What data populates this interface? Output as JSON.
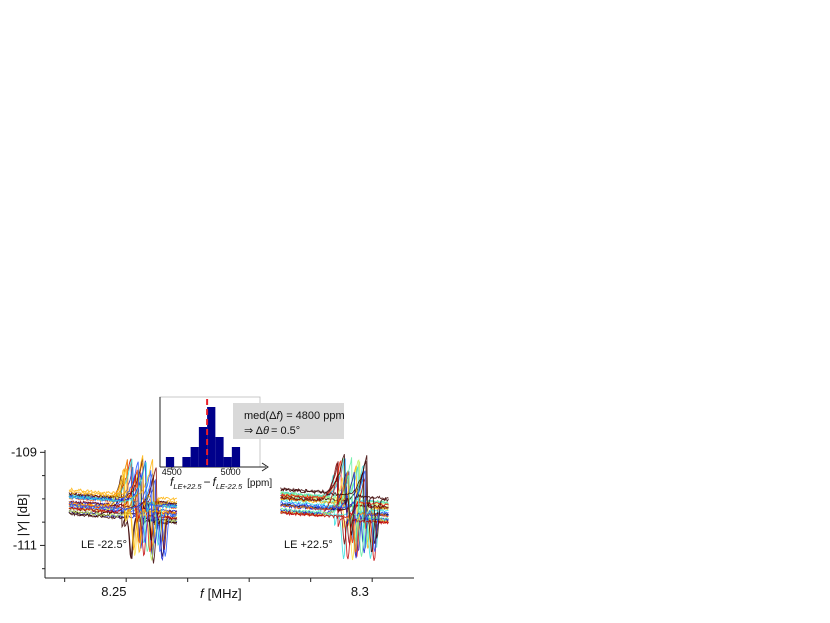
{
  "chart_data": [
    {
      "type": "line",
      "description_role": "main",
      "title": "",
      "xlabel": "f [MHz]",
      "xlabel_italic_part": "f",
      "xlabel_unit": "[MHz]",
      "ylabel": "|Y| [dB]",
      "ylabel_italic_part": "Y",
      "ylabel_unit": "[dB]",
      "xlim": [
        8.236,
        8.311
      ],
      "ylim": [
        -111.7,
        -108.95
      ],
      "x_ticks": [
        8.25,
        8.3
      ],
      "x_tick_labels": [
        "8.25",
        "8.3"
      ],
      "y_ticks": [
        -109,
        -111
      ],
      "y_tick_labels": [
        "-109",
        "-111"
      ],
      "grid": false,
      "groups": [
        {
          "label": "LE -22.5°",
          "resonance_range_MHz": [
            8.246,
            8.262
          ]
        },
        {
          "label": "LE +22.5°",
          "resonance_range_MHz": [
            8.289,
            8.305
          ]
        }
      ],
      "series_colormap": [
        "#3a0000",
        "#7a0000",
        "#c00000",
        "#ff2000",
        "#ff6a00",
        "#ffb000",
        "#ffe040",
        "#bff060",
        "#60f0a0",
        "#30e0e0",
        "#30a0ff",
        "#2050ff",
        "#1020d0"
      ]
    },
    {
      "type": "bar",
      "description_role": "inset histogram",
      "xlabel": "f_{LE+22.5} − f_{LE-22.5} [ppm]",
      "xlabel_parts": {
        "f1": "f",
        "sub1": "LE+22.5",
        "minus": "−",
        "f2": "f",
        "sub2": "LE-22.5",
        "unit": "[ppm]"
      },
      "x_tick_labels": [
        "4500",
        "5000"
      ],
      "x_ticks": [
        4500,
        5000
      ],
      "xlim": [
        4400,
        5300
      ],
      "bins": [
        {
          "x0": 4450,
          "x1": 4520,
          "count": 1
        },
        {
          "x0": 4520,
          "x1": 4590,
          "count": 0
        },
        {
          "x0": 4590,
          "x1": 4660,
          "count": 1
        },
        {
          "x0": 4660,
          "x1": 4730,
          "count": 2
        },
        {
          "x0": 4730,
          "x1": 4800,
          "count": 4
        },
        {
          "x0": 4800,
          "x1": 4870,
          "count": 6
        },
        {
          "x0": 4870,
          "x1": 4940,
          "count": 3
        },
        {
          "x0": 4940,
          "x1": 5010,
          "count": 1
        },
        {
          "x0": 5010,
          "x1": 5080,
          "count": 2
        }
      ],
      "bar_color": "#00008b",
      "median_line": 4800,
      "median_line_color": "#e8202a",
      "annotation": {
        "line1": "med(Δf) = 4800 ppm",
        "line1_parts": {
          "pre": "med(",
          "delta": "Δ",
          "f": "f",
          "post": ") = 4800 ppm"
        },
        "line2": "⇒ Δθ = 0.5°",
        "line2_parts": {
          "arrow": "⇒ Δ",
          "theta": "θ",
          "post": "= 0.5°"
        },
        "box_color": "#d9d9d9"
      }
    }
  ]
}
